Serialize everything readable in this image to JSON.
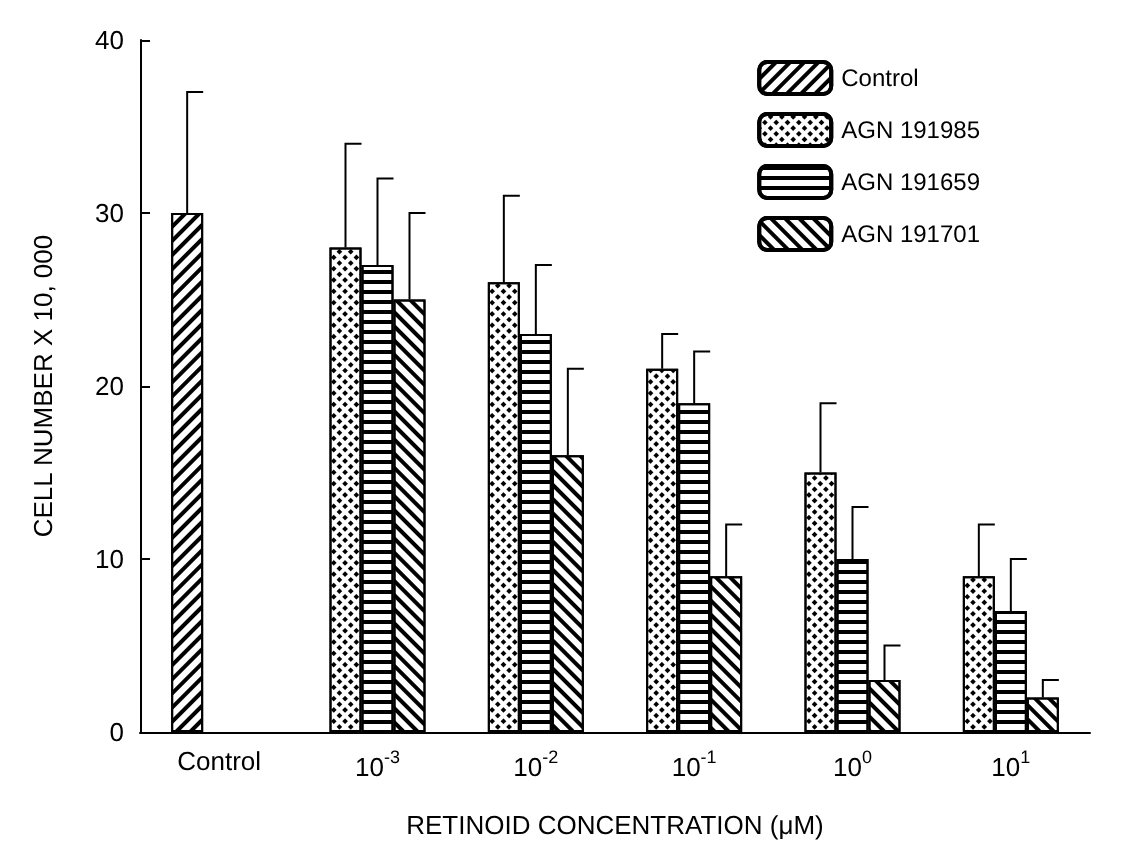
{
  "chart_data": {
    "type": "bar",
    "xlabel": "RETINOID CONCENTRATION (μM)",
    "ylabel": "CELL NUMBER X 10, 000",
    "categories": [
      "Control",
      "10$^{-3}$",
      "10$^{-2}$",
      "10$^{-1}$",
      "10$^{0}$",
      "10$^{1}$"
    ],
    "series": [
      {
        "name": "Control",
        "color": "#000000",
        "values": [
          30,
          null,
          null,
          null,
          null,
          null
        ],
        "errors": [
          [
            30,
            37
          ],
          null,
          null,
          null,
          null,
          null
        ]
      },
      {
        "name": "AGN 191985",
        "color": "#000000",
        "values": [
          null,
          28,
          26,
          21,
          15,
          9
        ],
        "errors": [
          null,
          [
            28,
            34
          ],
          [
            26,
            31
          ],
          [
            21,
            23
          ],
          [
            15,
            19
          ],
          [
            9,
            12
          ]
        ]
      },
      {
        "name": "AGN 191659",
        "color": "#000000",
        "values": [
          null,
          27,
          23,
          19,
          10,
          7
        ],
        "errors": [
          null,
          [
            27,
            32
          ],
          [
            23,
            27
          ],
          [
            19,
            22
          ],
          [
            10,
            13
          ],
          [
            7,
            10
          ]
        ]
      },
      {
        "name": "AGN 191701",
        "color": "#000000",
        "values": [
          null,
          25,
          16,
          9,
          3,
          2
        ],
        "errors": [
          null,
          [
            25,
            30
          ],
          [
            16,
            21
          ],
          [
            9,
            12
          ],
          [
            3,
            5
          ],
          [
            2,
            3
          ]
        ]
      }
    ],
    "ylim": [
      0,
      40
    ],
    "yticks": [
      0,
      10,
      20,
      30,
      40
    ],
    "grid": false,
    "legend": "top right"
  }
}
